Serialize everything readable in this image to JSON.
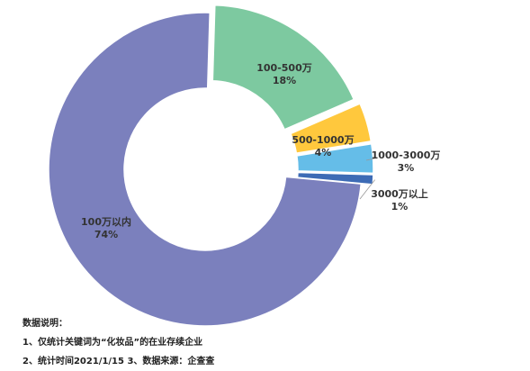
{
  "chart_data": {
    "type": "pie",
    "variant": "donut",
    "title": "",
    "slices": [
      {
        "label": "100-500万",
        "value": 18,
        "display": "18%",
        "color": "#7dc9a0"
      },
      {
        "label": "500-1000万",
        "value": 4,
        "display": "4%",
        "color": "#ffc83d"
      },
      {
        "label": "1000-3000万",
        "value": 3,
        "display": "3%",
        "color": "#65bde8"
      },
      {
        "label": "3000万以上",
        "value": 1,
        "display": "1%",
        "color": "#3d6bb5"
      },
      {
        "label": "100万以内",
        "value": 74,
        "display": "74%",
        "color": "#7b80bd"
      }
    ]
  },
  "notes": {
    "heading": "数据说明：",
    "line1": "1、仅统计关键词为“化妆品”的在业存续企业",
    "line2": "2、统计时间2021/1/15    3、数据来源：企查查"
  }
}
